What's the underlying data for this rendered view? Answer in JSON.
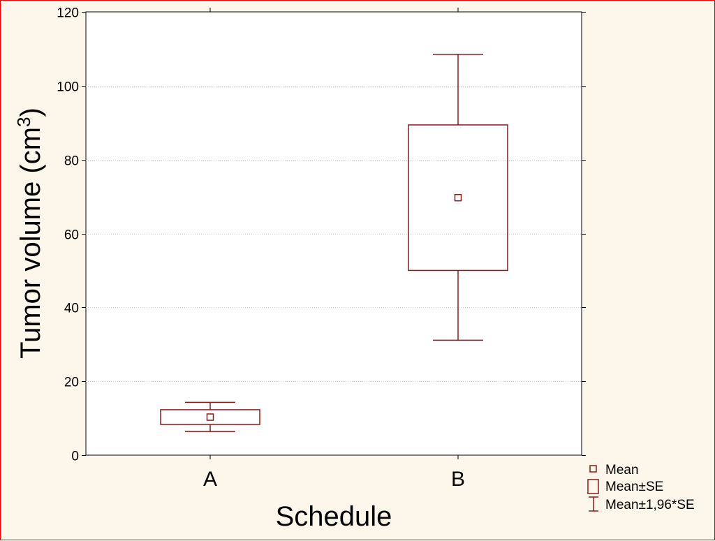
{
  "chart_data": {
    "type": "box",
    "xlabel": "Schedule",
    "ylabel_main": "Tumor volume (cm",
    "ylabel_sup": "3",
    "ylabel_close": ")",
    "ylim": [
      0,
      120
    ],
    "yticks": [
      0,
      20,
      40,
      60,
      80,
      100,
      120
    ],
    "grid": true,
    "categories": [
      "A",
      "B"
    ],
    "mean": [
      10.3,
      69.7
    ],
    "se_low": [
      8.3,
      50.0
    ],
    "se_high": [
      12.3,
      89.4
    ],
    "ci_low": [
      6.4,
      31.1
    ],
    "ci_high": [
      14.3,
      108.5
    ],
    "legend": {
      "placement": "bottom-right",
      "entries": [
        "Mean",
        "Mean±SE",
        "Mean±1,96*SE"
      ]
    },
    "colors": {
      "series": "#8b1a1a",
      "plot_bg": "#ffffff",
      "page_bg": "#fdf6ea",
      "frame": "#e00000",
      "grid": "#c8c8c8"
    }
  }
}
